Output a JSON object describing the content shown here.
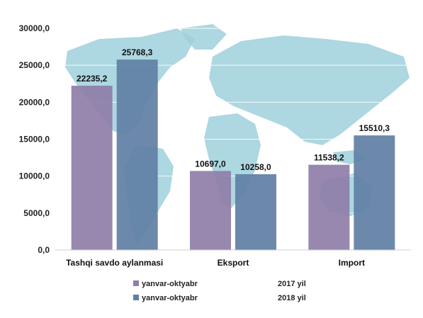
{
  "chart_data": {
    "type": "bar",
    "categories": [
      "Tashqi savdo aylanmasi",
      "Eksport",
      "Import"
    ],
    "series": [
      {
        "name": "yanvar-oktyabr",
        "legend_suffix": "2017 yil",
        "color": "#8f7ea8",
        "values": [
          22235.2,
          10697.0,
          11538.2
        ],
        "labels": [
          "22235,2",
          "10697,0",
          "11538,2"
        ]
      },
      {
        "name": "yanvar-oktyabr",
        "legend_suffix": "2018 yil",
        "color": "#5f7fa5",
        "values": [
          25768.3,
          10258.0,
          15510.3
        ],
        "labels": [
          "25768,3",
          "10258,0",
          "15510,3"
        ]
      }
    ],
    "yticks": [
      0,
      5000,
      10000,
      15000,
      20000,
      25000,
      30000
    ],
    "ytick_labels": [
      "0,0",
      "5000,0",
      "10000,0",
      "15000,0",
      "20000,0",
      "25000,0",
      "30000,0"
    ],
    "ylim": [
      0,
      30000
    ],
    "grid": true,
    "legend_position": "bottom",
    "background_map_color": "#9fd0dc"
  }
}
